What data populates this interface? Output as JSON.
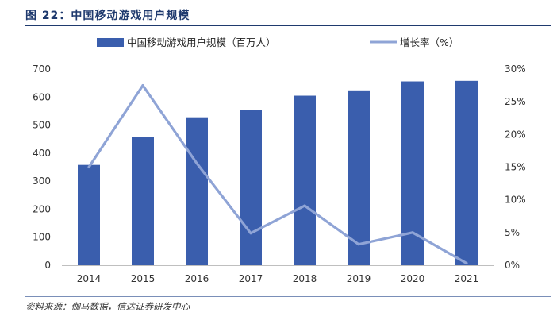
{
  "figure": {
    "title": "图 22：中国移动游戏用户规模",
    "source": "资料来源：伽马数据，信达证券研发中心"
  },
  "colors": {
    "bar": "#3a5ead",
    "line": "#8fa4d6",
    "heading": "#1f3a6e"
  },
  "chart_data": {
    "type": "bar",
    "categories": [
      "2014",
      "2015",
      "2016",
      "2017",
      "2018",
      "2019",
      "2020",
      "2021"
    ],
    "series": [
      {
        "name": "中国移动游戏用户规模（百万人）",
        "type": "bar",
        "axis": "left",
        "values": [
          358,
          457,
          528,
          554,
          605,
          624,
          656,
          658
        ]
      },
      {
        "name": "增长率（%）",
        "type": "line",
        "axis": "right",
        "values": [
          15.0,
          27.5,
          15.6,
          4.9,
          9.1,
          3.2,
          5.0,
          0.3
        ]
      }
    ],
    "y_left": {
      "ylim": [
        0,
        700
      ],
      "ticks": [
        "0",
        "100",
        "200",
        "300",
        "400",
        "500",
        "600",
        "700"
      ]
    },
    "y_right": {
      "ylim": [
        0,
        30
      ],
      "ticks": [
        "0%",
        "5%",
        "10%",
        "15%",
        "20%",
        "25%",
        "30%"
      ]
    },
    "grid": false,
    "legend_position": "top"
  }
}
